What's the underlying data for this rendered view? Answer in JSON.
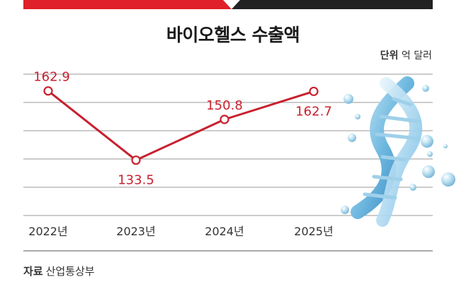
{
  "header": {
    "title": "바이오헬스 수출액"
  },
  "unit": {
    "label": "단위",
    "value": "억 달러"
  },
  "source": {
    "label": "자료",
    "value": "산업통상부"
  },
  "colors": {
    "accent_red": "#e0202a",
    "dark": "#222222",
    "line": "#c8202e",
    "grid": "#9a9a9a"
  },
  "chart_data": {
    "type": "line",
    "title": "바이오헬스 수출액",
    "categories": [
      "2022년",
      "2023년",
      "2024년",
      "2025년"
    ],
    "values": [
      162.9,
      133.5,
      150.8,
      162.7
    ],
    "value_labels": [
      "162.9",
      "133.5",
      "150.8",
      "162.7"
    ],
    "ylim": [
      110,
      170
    ],
    "grid": true,
    "decoration": "dna-helix-icon"
  }
}
